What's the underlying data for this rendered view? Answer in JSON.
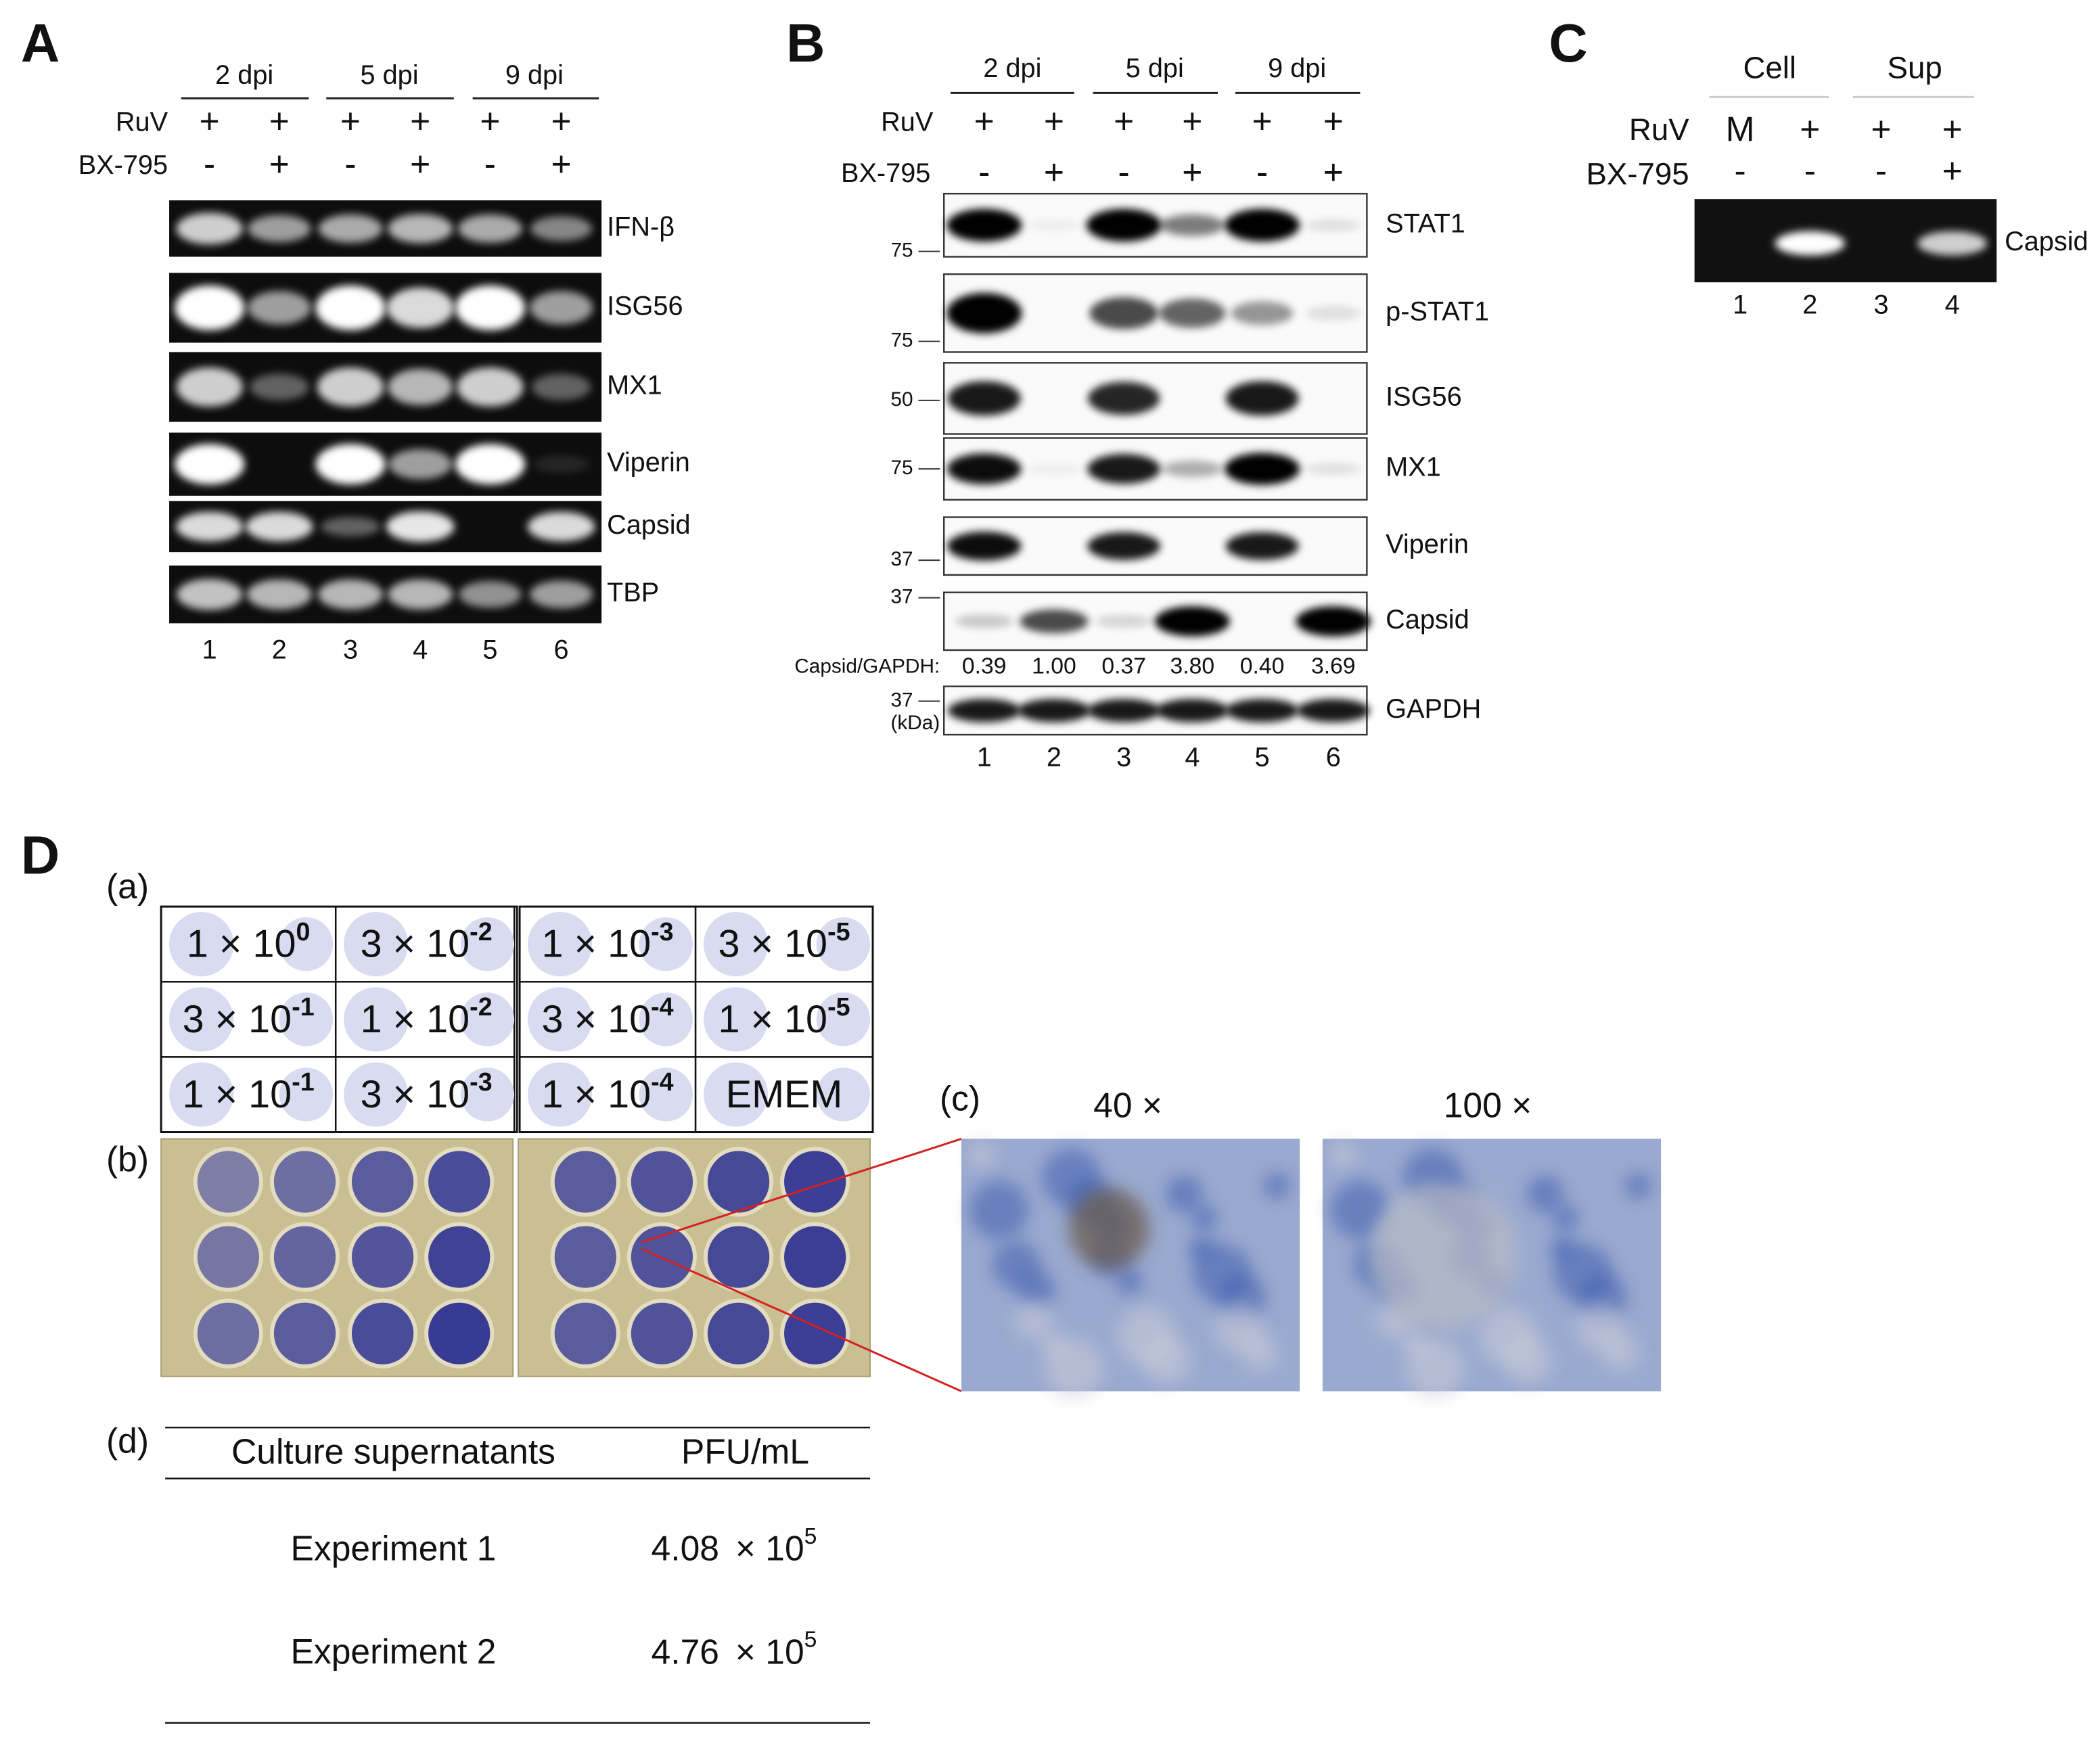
{
  "panel_a": {
    "label": "A",
    "timepoints": [
      "2 dpi",
      "5 dpi",
      "9 dpi"
    ],
    "row_labels": [
      "RuV",
      "BX-795"
    ],
    "ruv": [
      "+",
      "+",
      "+",
      "+",
      "+",
      "+"
    ],
    "bx795": [
      "-",
      "+",
      "-",
      "+",
      "-",
      "+"
    ],
    "genes": [
      "IFN-β",
      "ISG56",
      "MX1",
      "Viperin",
      "Capsid",
      "TBP"
    ],
    "lanes": [
      1,
      2,
      3,
      4,
      5,
      6
    ]
  },
  "panel_b": {
    "label": "B",
    "timepoints": [
      "2 dpi",
      "5 dpi",
      "9 dpi"
    ],
    "row_labels": [
      "RuV",
      "BX-795"
    ],
    "ruv": [
      "+",
      "+",
      "+",
      "+",
      "+",
      "+"
    ],
    "bx795": [
      "-",
      "+",
      "-",
      "+",
      "-",
      "+"
    ],
    "proteins": [
      "STAT1",
      "p-STAT1",
      "ISG56",
      "MX1",
      "Viperin",
      "Capsid",
      "GAPDH"
    ],
    "markers": [
      "75",
      "75",
      "50",
      "75",
      "37",
      "37",
      "37"
    ],
    "unit": "(kDa)",
    "ratio_label": "Capsid/GAPDH:",
    "ratios": [
      "0.39",
      "1.00",
      "0.37",
      "3.80",
      "0.40",
      "3.69"
    ],
    "lanes": [
      1,
      2,
      3,
      4,
      5,
      6
    ]
  },
  "panel_c": {
    "label": "C",
    "groups": [
      "Cell",
      "Sup"
    ],
    "row_labels": [
      "RuV",
      "BX-795"
    ],
    "ruv": [
      "M",
      "+",
      "+",
      "+"
    ],
    "bx795": [
      "-",
      "-",
      "-",
      "+"
    ],
    "band": "Capsid",
    "lanes": [
      1,
      2,
      3,
      4
    ]
  },
  "panel_d": {
    "label": "D",
    "sub_labels": [
      "(a)",
      "(b)",
      "(c)",
      "(d)"
    ],
    "dilutions": [
      [
        {
          "text": "1 × 10",
          "sup": "0"
        },
        {
          "text": "3 × 10",
          "sup": "-2"
        },
        {
          "text": "1 × 10",
          "sup": "-3"
        },
        {
          "text": "3 × 10",
          "sup": "-5"
        }
      ],
      [
        {
          "text": "3 × 10",
          "sup": "-1"
        },
        {
          "text": "1 × 10",
          "sup": "-2"
        },
        {
          "text": "3 × 10",
          "sup": "-4"
        },
        {
          "text": "1 × 10",
          "sup": "-5"
        }
      ],
      [
        {
          "text": "1 × 10",
          "sup": "-1"
        },
        {
          "text": "3 × 10",
          "sup": "-3"
        },
        {
          "text": "1 × 10",
          "sup": "-4"
        },
        {
          "text": "EMEM"
        }
      ]
    ],
    "magnifications": [
      "40 ×",
      "100 ×"
    ],
    "table": {
      "headers": [
        "Culture supernatants",
        "PFU/mL"
      ],
      "rows": [
        {
          "name": "Experiment 1",
          "value": "4.08",
          "times": "× 10",
          "sup": "5"
        },
        {
          "name": "Experiment 2",
          "value": "4.76",
          "times": "× 10",
          "sup": "5"
        }
      ]
    }
  }
}
